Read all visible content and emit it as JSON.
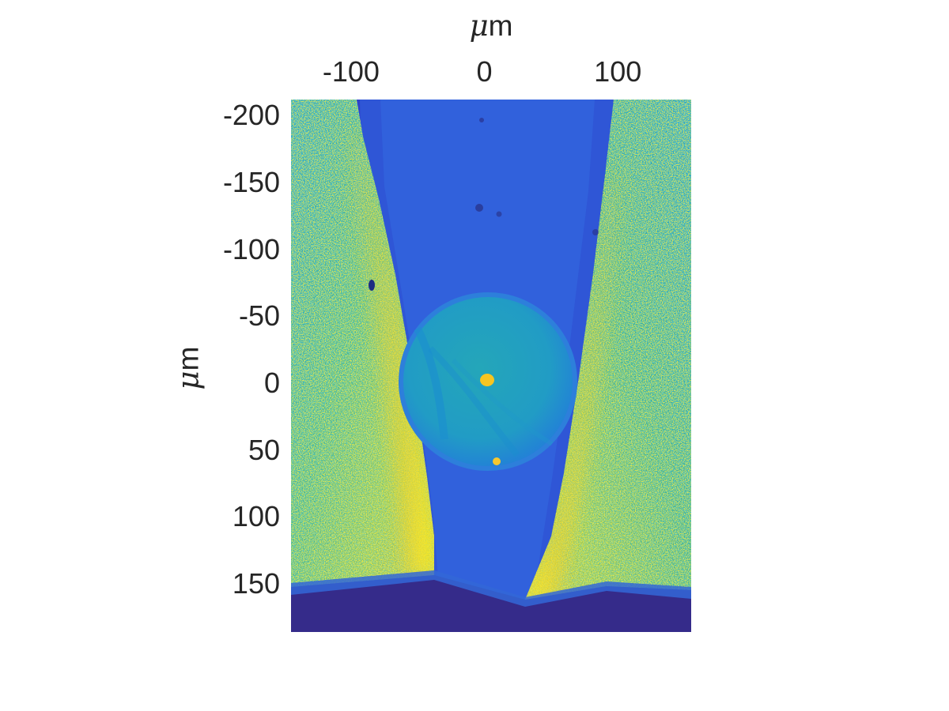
{
  "figure": {
    "x_axis_label_unit": "m",
    "x_axis_label_prefix": "μ",
    "y_axis_label_unit": "m",
    "y_axis_label_prefix": "μ",
    "x_tick_labels": [
      "-100",
      "0",
      "100"
    ],
    "y_tick_labels": [
      "-200",
      "-150",
      "-100",
      "-50",
      "0",
      "50",
      "100",
      "150"
    ],
    "x_ticks": [
      -100,
      0,
      100
    ],
    "y_ticks": [
      -200,
      -150,
      -100,
      -50,
      0,
      50,
      100,
      150
    ],
    "x_range": [
      -145,
      155
    ],
    "y_range": [
      -212,
      186
    ],
    "colormap": [
      "#352a87",
      "#2f5bdc",
      "#1f8fd6",
      "#20b3a7",
      "#75c46a",
      "#d5bb2f",
      "#f9fb0e"
    ]
  }
}
